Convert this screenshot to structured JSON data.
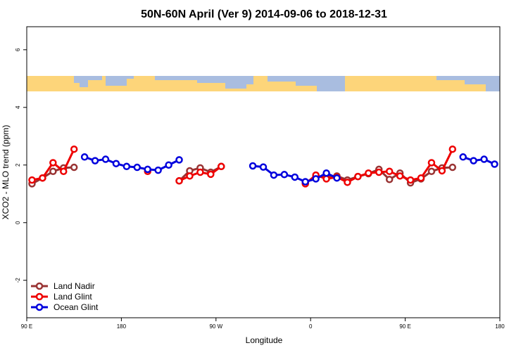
{
  "chart_data": {
    "type": "line",
    "title": "50N-60N April (Ver 9)   2014-09-06 to 2018-12-31",
    "x_label": "Longitude",
    "y_label": "XCO2 - MLO trend (ppm)",
    "x": [
      95,
      105,
      115,
      125,
      135,
      145,
      155,
      165,
      175,
      185,
      195,
      205,
      215,
      225,
      235,
      245,
      255,
      265,
      275,
      285,
      295,
      305,
      315,
      325,
      335,
      345,
      355,
      365,
      375,
      385,
      395,
      405,
      415,
      425,
      435,
      445,
      455,
      465,
      475,
      485,
      495,
      505,
      515,
      525,
      535
    ],
    "xlim": [
      90,
      540
    ],
    "xticks": [
      {
        "value": 90,
        "label": "90 E"
      },
      180,
      {
        "value": 270,
        "label": "90 W"
      },
      {
        "value": 360,
        "label": "0"
      },
      {
        "value": 450,
        "label": "90 E"
      },
      {
        "value": 540,
        "label": "180"
      }
    ],
    "ylim": [
      -3.3,
      6.8
    ],
    "yticks": [
      -2,
      0,
      2,
      4,
      6
    ],
    "legend": "bottom-left",
    "series": [
      {
        "name": "Land Nadir",
        "color": "#993333",
        "values": [
          1.35,
          1.55,
          1.78,
          1.9,
          1.92,
          null,
          null,
          null,
          null,
          null,
          null,
          null,
          null,
          null,
          1.45,
          1.8,
          1.9,
          1.75,
          1.95,
          null,
          null,
          null,
          null,
          null,
          null,
          null,
          1.38,
          1.6,
          1.58,
          1.62,
          1.48,
          1.6,
          1.7,
          1.85,
          1.5,
          1.72,
          1.38,
          1.52,
          1.78,
          1.9,
          1.92,
          null,
          null,
          null,
          null
        ]
      },
      {
        "name": "Land Glint",
        "color": "#ee0000",
        "values": [
          1.48,
          1.55,
          2.08,
          1.78,
          2.55,
          null,
          null,
          null,
          null,
          null,
          null,
          1.78,
          null,
          null,
          1.45,
          1.62,
          1.75,
          1.68,
          1.95,
          null,
          null,
          null,
          null,
          null,
          null,
          null,
          1.35,
          1.65,
          1.52,
          1.58,
          1.4,
          1.6,
          1.72,
          1.75,
          1.78,
          1.62,
          1.48,
          1.55,
          2.08,
          1.8,
          2.55,
          null,
          null,
          null,
          null
        ]
      },
      {
        "name": "Ocean Glint",
        "color": "#0000dd",
        "values": [
          null,
          null,
          null,
          null,
          null,
          2.28,
          2.15,
          2.2,
          2.05,
          1.95,
          1.92,
          1.85,
          1.82,
          2.0,
          2.18,
          null,
          null,
          null,
          null,
          null,
          null,
          1.97,
          1.93,
          1.65,
          1.67,
          1.58,
          1.42,
          1.52,
          1.72,
          1.55,
          null,
          null,
          null,
          null,
          null,
          null,
          null,
          null,
          null,
          null,
          null,
          2.28,
          2.15,
          2.2,
          2.03
        ]
      }
    ]
  }
}
